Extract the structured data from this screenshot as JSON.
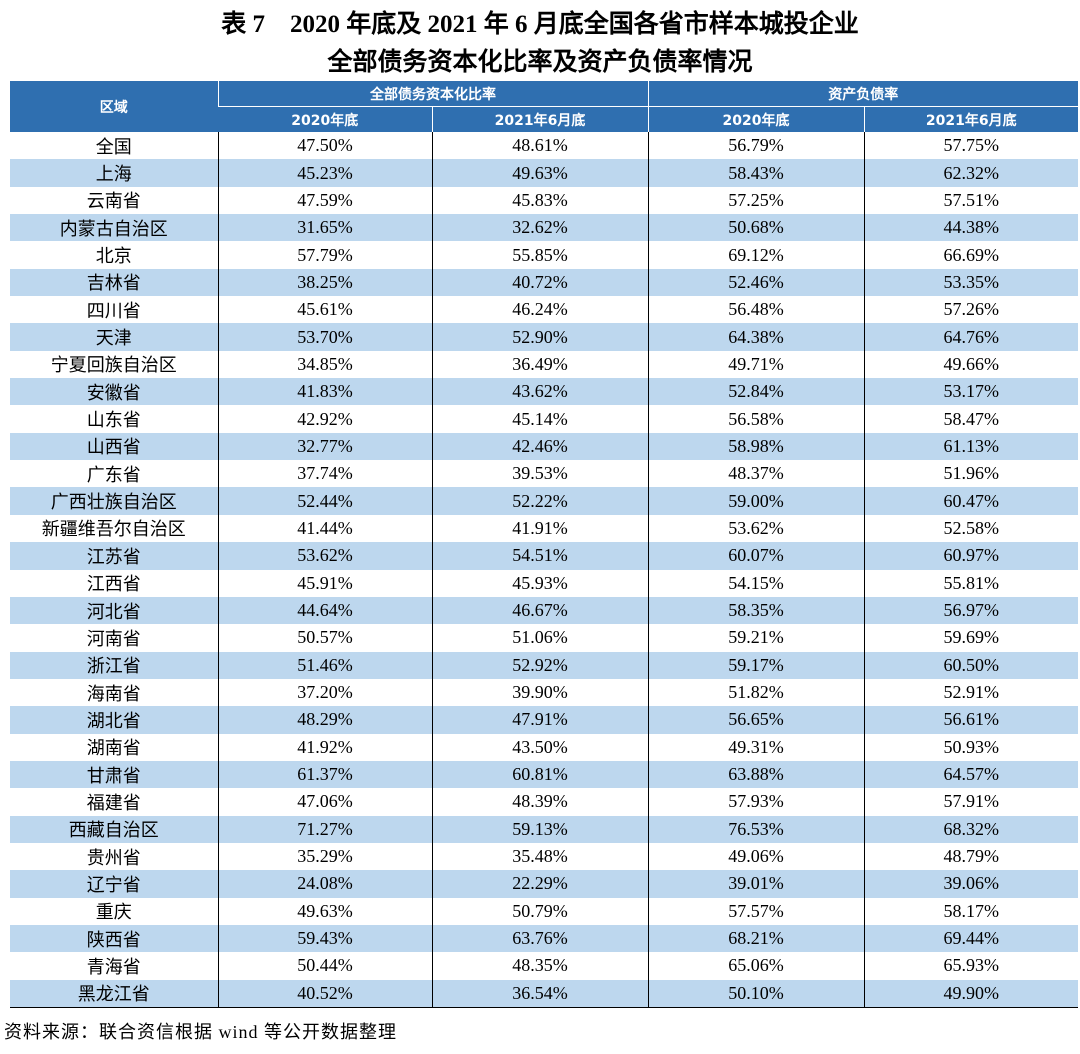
{
  "title": [
    "表 7　2020 年底及 2021 年 6 月底全国各省市样本城投企业",
    "全部债务资本化比率及资产负债率情况"
  ],
  "table": {
    "header": [
      "区域",
      "全部债务资本化比率",
      "资产负债率"
    ],
    "subheader": [
      "2020年底",
      "2021年6月底",
      "2020年底",
      "2021年6月底"
    ],
    "rows": [
      [
        "全国",
        "47.50%",
        "48.61%",
        "56.79%",
        "57.75%"
      ],
      [
        "上海",
        "45.23%",
        "49.63%",
        "58.43%",
        "62.32%"
      ],
      [
        "云南省",
        "47.59%",
        "45.83%",
        "57.25%",
        "57.51%"
      ],
      [
        "内蒙古自治区",
        "31.65%",
        "32.62%",
        "50.68%",
        "44.38%"
      ],
      [
        "北京",
        "57.79%",
        "55.85%",
        "69.12%",
        "66.69%"
      ],
      [
        "吉林省",
        "38.25%",
        "40.72%",
        "52.46%",
        "53.35%"
      ],
      [
        "四川省",
        "45.61%",
        "46.24%",
        "56.48%",
        "57.26%"
      ],
      [
        "天津",
        "53.70%",
        "52.90%",
        "64.38%",
        "64.76%"
      ],
      [
        "宁夏回族自治区",
        "34.85%",
        "36.49%",
        "49.71%",
        "49.66%"
      ],
      [
        "安徽省",
        "41.83%",
        "43.62%",
        "52.84%",
        "53.17%"
      ],
      [
        "山东省",
        "42.92%",
        "45.14%",
        "56.58%",
        "58.47%"
      ],
      [
        "山西省",
        "32.77%",
        "42.46%",
        "58.98%",
        "61.13%"
      ],
      [
        "广东省",
        "37.74%",
        "39.53%",
        "48.37%",
        "51.96%"
      ],
      [
        "广西壮族自治区",
        "52.44%",
        "52.22%",
        "59.00%",
        "60.47%"
      ],
      [
        "新疆维吾尔自治区",
        "41.44%",
        "41.91%",
        "53.62%",
        "52.58%"
      ],
      [
        "江苏省",
        "53.62%",
        "54.51%",
        "60.07%",
        "60.97%"
      ],
      [
        "江西省",
        "45.91%",
        "45.93%",
        "54.15%",
        "55.81%"
      ],
      [
        "河北省",
        "44.64%",
        "46.67%",
        "58.35%",
        "56.97%"
      ],
      [
        "河南省",
        "50.57%",
        "51.06%",
        "59.21%",
        "59.69%"
      ],
      [
        "浙江省",
        "51.46%",
        "52.92%",
        "59.17%",
        "60.50%"
      ],
      [
        "海南省",
        "37.20%",
        "39.90%",
        "51.82%",
        "52.91%"
      ],
      [
        "湖北省",
        "48.29%",
        "47.91%",
        "56.65%",
        "56.61%"
      ],
      [
        "湖南省",
        "41.92%",
        "43.50%",
        "49.31%",
        "50.93%"
      ],
      [
        "甘肃省",
        "61.37%",
        "60.81%",
        "63.88%",
        "64.57%"
      ],
      [
        "福建省",
        "47.06%",
        "48.39%",
        "57.93%",
        "57.91%"
      ],
      [
        "西藏自治区",
        "71.27%",
        "59.13%",
        "76.53%",
        "68.32%"
      ],
      [
        "贵州省",
        "35.29%",
        "35.48%",
        "49.06%",
        "48.79%"
      ],
      [
        "辽宁省",
        "24.08%",
        "22.29%",
        "39.01%",
        "39.06%"
      ],
      [
        "重庆",
        "49.63%",
        "50.79%",
        "57.57%",
        "58.17%"
      ],
      [
        "陕西省",
        "59.43%",
        "63.76%",
        "68.21%",
        "69.44%"
      ],
      [
        "青海省",
        "50.44%",
        "48.35%",
        "65.06%",
        "65.93%"
      ],
      [
        "黑龙江省",
        "40.52%",
        "36.54%",
        "50.10%",
        "49.90%"
      ]
    ]
  },
  "source": "资料来源：联合资信根据 wind 等公开数据整理"
}
